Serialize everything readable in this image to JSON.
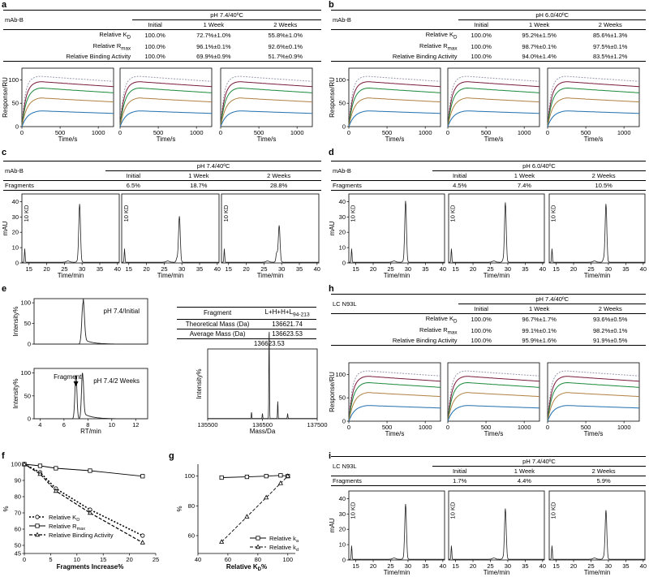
{
  "panels": {
    "a": {
      "letter": "a",
      "row_header": "mAb-B",
      "condition": "pH 7.4/40ºC",
      "cols": [
        "Initial",
        "1 Week",
        "2 Weeks"
      ],
      "rows": [
        {
          "label": "Relative K",
          "sub": "D",
          "vals": [
            "100.0%",
            "72.7%±1.0%",
            "55.8%±1.0%"
          ]
        },
        {
          "label": "Relative R",
          "sub": "max",
          "vals": [
            "100.0%",
            "96.1%±0.1%",
            "92.6%±0.1%"
          ]
        },
        {
          "label": "Relative Binding Activity",
          "sub": "",
          "vals": [
            "100.0%",
            "69.9%±0.9%",
            "51.7%±0.9%"
          ]
        }
      ],
      "ylabel": "Response/RU",
      "xlabel": "Time/s",
      "yticks": [
        "0",
        "50",
        "100"
      ],
      "xticks": [
        "0",
        "500",
        "1000"
      ]
    },
    "b": {
      "letter": "b",
      "row_header": "mAb-B",
      "condition": "pH 6.0/40ºC",
      "cols": [
        "Initial",
        "1 Week",
        "2 Weeks"
      ],
      "rows": [
        {
          "label": "Relative K",
          "sub": "D",
          "vals": [
            "100.0%",
            "95.2%±1.5%",
            "85.6%±1.3%"
          ]
        },
        {
          "label": "Relative R",
          "sub": "max",
          "vals": [
            "100.0%",
            "98.7%±0.1%",
            "97.5%±0.1%"
          ]
        },
        {
          "label": "Relative Binding Activity",
          "sub": "",
          "vals": [
            "100.0%",
            "94.0%±1.4%",
            "83.5%±1.2%"
          ]
        }
      ],
      "ylabel": "Response/RU",
      "xlabel": "Time/s",
      "yticks": [
        "0",
        "50",
        "100"
      ],
      "xticks": [
        "0",
        "500",
        "1000"
      ]
    },
    "c": {
      "letter": "c",
      "row_header": "mAb-B",
      "condition": "pH 7.4/40ºC",
      "cols": [
        "Initial",
        "1 Week",
        "2 Weeks"
      ],
      "row": {
        "label": "Fragments",
        "vals": [
          "6.5%",
          "18.7%",
          "28.8%"
        ]
      },
      "ylabel": "mAU",
      "xlabel": "Time/min",
      "marker": "10 KD",
      "yticks": [
        "0",
        "10",
        "20",
        "30",
        "40"
      ],
      "xticks": [
        "15",
        "20",
        "25",
        "30",
        "35",
        "40"
      ]
    },
    "d": {
      "letter": "d",
      "row_header": "mAb-B",
      "condition": "pH 6.0/40ºC",
      "cols": [
        "Initial",
        "1 Week",
        "2 Weeks"
      ],
      "row": {
        "label": "Fragments",
        "vals": [
          "4.5%",
          "7.4%",
          "10.5%"
        ]
      },
      "ylabel": "mAU",
      "xlabel": "Time/min",
      "marker": "10 KD",
      "yticks": [
        "0",
        "10",
        "20",
        "30",
        "40"
      ],
      "xticks": [
        "15",
        "20",
        "25",
        "30",
        "35",
        "40"
      ]
    },
    "e": {
      "letter": "e",
      "top_label": "pH 7.4/Initial",
      "bottom_label": "pH 7.4/2 Weeks",
      "fragment_label": "Fragment",
      "ylabel": "Intensity%",
      "xlabel": "RT/min",
      "yticks": [
        "0",
        "50",
        "100"
      ],
      "xticks": [
        "4",
        "6",
        "8",
        "10",
        "12"
      ],
      "table": {
        "header": [
          "Fragment",
          "L+H+H+L"
        ],
        "header_sub": "94-213",
        "rows": [
          [
            "Theoretical Mass (Da)",
            "136621.74"
          ],
          [
            "Average Mass (Da)",
            "136623.53"
          ]
        ]
      },
      "ms": {
        "peak_label": "136623.53",
        "ylabel": "Intensity%",
        "xlabel": "Mass/Da",
        "xticks": [
          "135500",
          "136500",
          "137500"
        ]
      }
    },
    "f": {
      "letter": "f",
      "ylabel": "%",
      "xlabel": "Fragments Increase%",
      "yticks": [
        "45",
        "50",
        "60",
        "70",
        "80",
        "90",
        "100"
      ],
      "xticks": [
        "0",
        "5",
        "10",
        "15",
        "20",
        "25"
      ],
      "legend": [
        {
          "label": "Relative K",
          "sub": "D"
        },
        {
          "label": "Relative R",
          "sub": "max"
        },
        {
          "label": "Relative Binding Activity",
          "sub": ""
        }
      ]
    },
    "g": {
      "letter": "g",
      "ylabel": "%",
      "xlabel": "Relative K",
      "xlabel_sub": "D",
      "xlabel_tail": "%",
      "yticks": [
        "60",
        "80",
        "100"
      ],
      "xticks": [
        "40",
        "60",
        "80",
        "100"
      ],
      "legend": [
        {
          "label": "Relative k",
          "sub": "a"
        },
        {
          "label": "Relative k",
          "sub": "d"
        }
      ]
    },
    "h": {
      "letter": "h",
      "row_header": "LC N93L",
      "condition": "pH 7.4/40ºC",
      "cols": [
        "Initial",
        "1 Week",
        "2 Weeks"
      ],
      "rows": [
        {
          "label": "Relative K",
          "sub": "D",
          "vals": [
            "100.0%",
            "96.7%±1.7%",
            "93.6%±0.5%"
          ]
        },
        {
          "label": "Relative R",
          "sub": "max",
          "vals": [
            "100.0%",
            "99.1%±0.1%",
            "98.2%±0.1%"
          ]
        },
        {
          "label": "Relative Binding Activity",
          "sub": "",
          "vals": [
            "100.0%",
            "95.9%±1.6%",
            "91.9%±0.5%"
          ]
        }
      ],
      "ylabel": "Response/RU",
      "xlabel": "Time/s",
      "yticks": [
        "0",
        "50",
        "100"
      ],
      "xticks": [
        "0",
        "500",
        "1000"
      ]
    },
    "i": {
      "letter": "i",
      "row_header": "LC N93L",
      "condition": "pH 7.4/40ºC",
      "cols": [
        "Initial",
        "1 Week",
        "2 Weeks"
      ],
      "row": {
        "label": "Fragments",
        "vals": [
          "1.7%",
          "4.4%",
          "5.9%"
        ]
      },
      "ylabel": "mAU",
      "xlabel": "Time/min",
      "marker": "10 KD",
      "yticks": [
        "0",
        "10",
        "20",
        "30",
        "40"
      ],
      "xticks": [
        "15",
        "20",
        "25",
        "30",
        "35",
        "40"
      ]
    }
  },
  "chart_data": [
    {
      "type": "line",
      "panel": "f",
      "x": [
        0,
        3,
        6,
        12.5,
        22.5
      ],
      "series": [
        {
          "name": "Relative KD",
          "values": [
            100,
            95,
            85,
            72,
            56
          ]
        },
        {
          "name": "Relative Rmax",
          "values": [
            100,
            99,
            97.5,
            96,
            92.6
          ]
        },
        {
          "name": "Relative Binding Activity",
          "values": [
            100,
            94,
            83.5,
            70,
            51.7
          ]
        }
      ],
      "xlim": [
        0,
        25
      ],
      "ylim": [
        45,
        100
      ]
    },
    {
      "type": "line",
      "panel": "g",
      "series": [
        {
          "name": "Relative ka",
          "x": [
            55.8,
            72.7,
            85.6,
            95.2,
            100
          ],
          "values": [
            99,
            99.5,
            100,
            100.5,
            100
          ]
        },
        {
          "name": "Relative kd",
          "x": [
            55.8,
            72.7,
            85.6,
            95.2,
            100
          ],
          "values": [
            55.8,
            72.7,
            85.6,
            95.2,
            100
          ]
        }
      ],
      "xlim": [
        40,
        105
      ],
      "ylim": [
        50,
        105
      ]
    }
  ],
  "colors": {
    "spr": [
      "#9a9ab0",
      "#7a1a3a",
      "#1a8a3a",
      "#b08040",
      "#2070b0"
    ]
  }
}
